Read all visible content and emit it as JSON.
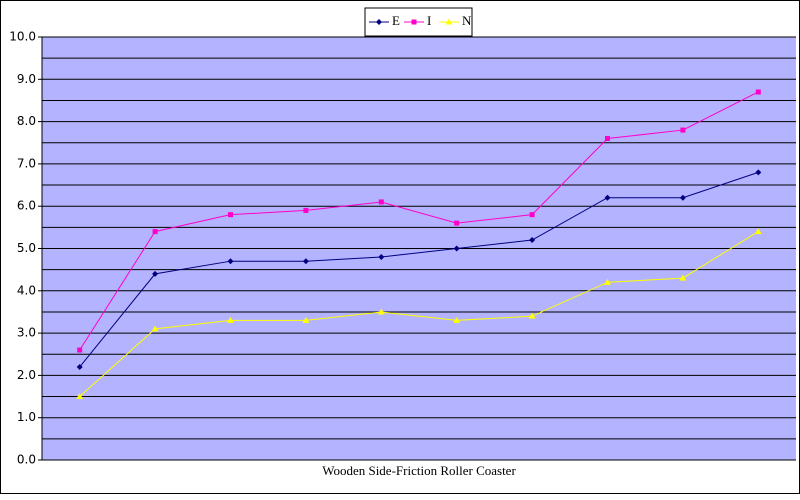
{
  "chart_data": {
    "type": "line",
    "x_label": "Wooden Side-Friction Roller Coaster",
    "categories": [
      null,
      null,
      null,
      null,
      null,
      null,
      null,
      null,
      null,
      null
    ],
    "series": [
      {
        "name": "E",
        "color": "#000080",
        "marker": "diamond",
        "values": [
          2.2,
          4.4,
          4.7,
          4.7,
          4.8,
          5.0,
          5.2,
          6.2,
          6.2,
          6.8
        ]
      },
      {
        "name": "I",
        "color": "#ff00cc",
        "marker": "square",
        "values": [
          2.6,
          5.4,
          5.8,
          5.9,
          6.1,
          5.6,
          5.8,
          7.6,
          7.8,
          8.7
        ]
      },
      {
        "name": "N",
        "color": "#ffff00",
        "marker": "triangle",
        "values": [
          1.5,
          3.1,
          3.3,
          3.3,
          3.5,
          3.3,
          3.4,
          4.2,
          4.3,
          5.4
        ]
      }
    ],
    "ylim": [
      0,
      10
    ],
    "yticks": [
      {
        "value": 0,
        "label": "0.0"
      },
      {
        "value": 1,
        "label": "1.0"
      },
      {
        "value": 2,
        "label": "2.0"
      },
      {
        "value": 3,
        "label": "3.0"
      },
      {
        "value": 4,
        "label": "4.0"
      },
      {
        "value": 5,
        "label": "5.0"
      },
      {
        "value": 6,
        "label": "6.0"
      },
      {
        "value": 7,
        "label": "7.0"
      },
      {
        "value": 8,
        "label": "8.0"
      },
      {
        "value": 9,
        "label": "9.0"
      },
      {
        "value": 10,
        "label": "10.0"
      }
    ],
    "minor_yticks": [
      0.5,
      1.5,
      2.5,
      3.5,
      4.5,
      5.5,
      6.5,
      7.5,
      8.5,
      9.5
    ],
    "grid": true,
    "plot_background": "#b3b3ff",
    "legend": "top"
  }
}
